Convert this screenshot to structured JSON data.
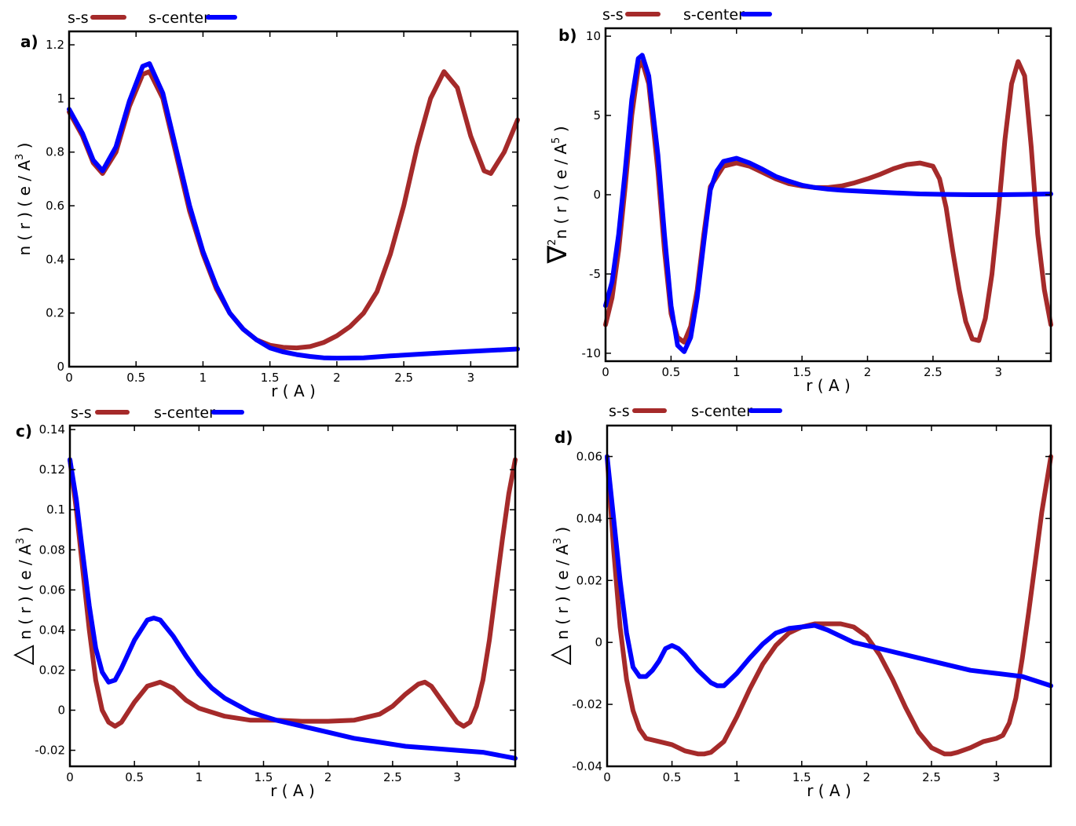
{
  "chart_data": [
    {
      "id": "a",
      "type": "line",
      "panel_label": "a)",
      "xlabel": "r ( A )",
      "ylabel_main": "n ( r ) ( e / A",
      "ylabel_sup": "3",
      "ylabel_tail": " )",
      "ylabel_prefix": "",
      "xlim": [
        0,
        3.35
      ],
      "ylim": [
        0,
        1.25
      ],
      "xticks": [
        0,
        0.5,
        1,
        1.5,
        2,
        2.5,
        3
      ],
      "xtick_labels": [
        "0",
        "0.5",
        "1",
        "1.5",
        "2",
        "2.5",
        "3"
      ],
      "yticks": [
        0,
        0.2,
        0.4,
        0.6,
        0.8,
        1,
        1.2
      ],
      "ytick_labels": [
        "0",
        "0.2",
        "0.4",
        "0.6",
        "0.8",
        "1",
        "1.2"
      ],
      "series": [
        {
          "name": "s-s",
          "color": "#a52a2a",
          "x": [
            0,
            0.1,
            0.18,
            0.25,
            0.35,
            0.45,
            0.55,
            0.6,
            0.7,
            0.8,
            0.9,
            1.0,
            1.1,
            1.2,
            1.3,
            1.4,
            1.5,
            1.6,
            1.7,
            1.8,
            1.9,
            2.0,
            2.1,
            2.2,
            2.3,
            2.4,
            2.5,
            2.6,
            2.7,
            2.8,
            2.9,
            3.0,
            3.1,
            3.15,
            3.25,
            3.35
          ],
          "y": [
            0.95,
            0.86,
            0.76,
            0.72,
            0.8,
            0.97,
            1.09,
            1.1,
            1.0,
            0.79,
            0.58,
            0.42,
            0.29,
            0.2,
            0.14,
            0.1,
            0.08,
            0.072,
            0.07,
            0.075,
            0.09,
            0.115,
            0.15,
            0.2,
            0.28,
            0.42,
            0.6,
            0.82,
            1.0,
            1.1,
            1.04,
            0.86,
            0.73,
            0.72,
            0.8,
            0.92
          ]
        },
        {
          "name": "s-center",
          "color": "#0000ff",
          "x": [
            0,
            0.1,
            0.18,
            0.25,
            0.35,
            0.45,
            0.55,
            0.6,
            0.7,
            0.8,
            0.9,
            1.0,
            1.1,
            1.2,
            1.3,
            1.4,
            1.5,
            1.6,
            1.7,
            1.8,
            1.9,
            2.0,
            2.2,
            2.4,
            2.6,
            2.8,
            3.0,
            3.2,
            3.35
          ],
          "y": [
            0.96,
            0.87,
            0.77,
            0.73,
            0.82,
            0.99,
            1.12,
            1.13,
            1.02,
            0.81,
            0.6,
            0.43,
            0.3,
            0.2,
            0.14,
            0.1,
            0.07,
            0.055,
            0.045,
            0.038,
            0.033,
            0.032,
            0.033,
            0.04,
            0.046,
            0.052,
            0.057,
            0.062,
            0.066
          ]
        }
      ]
    },
    {
      "id": "b",
      "type": "line",
      "panel_label": "b)",
      "xlabel": "r ( A )",
      "ylabel_prefix": "∇",
      "ylabel_sup_prefix": "2",
      "ylabel_main": "n ( r ) ( e / A",
      "ylabel_sup": "5",
      "ylabel_tail": " )",
      "xlim": [
        0,
        3.4
      ],
      "ylim": [
        -10.5,
        10.5
      ],
      "xticks": [
        0,
        0.5,
        1,
        1.5,
        2,
        2.5,
        3
      ],
      "xtick_labels": [
        "0",
        "0.5",
        "1",
        "1.5",
        "2",
        "2.5",
        "3"
      ],
      "yticks": [
        -10,
        -5,
        0,
        5,
        10
      ],
      "ytick_labels": [
        "-10",
        "-5",
        "0",
        "5",
        "10"
      ],
      "series": [
        {
          "name": "s-s",
          "color": "#a52a2a",
          "x": [
            0,
            0.05,
            0.1,
            0.15,
            0.2,
            0.25,
            0.28,
            0.33,
            0.4,
            0.45,
            0.5,
            0.55,
            0.6,
            0.65,
            0.7,
            0.75,
            0.8,
            0.9,
            1.0,
            1.1,
            1.2,
            1.3,
            1.4,
            1.5,
            1.6,
            1.7,
            1.8,
            1.9,
            2.0,
            2.1,
            2.2,
            2.3,
            2.4,
            2.5,
            2.55,
            2.6,
            2.65,
            2.7,
            2.75,
            2.8,
            2.85,
            2.9,
            2.95,
            3.0,
            3.05,
            3.1,
            3.15,
            3.2,
            3.25,
            3.3,
            3.35,
            3.4
          ],
          "y": [
            -8.2,
            -6.5,
            -3.5,
            0.5,
            5.0,
            8.0,
            8.4,
            7.0,
            1.5,
            -3.5,
            -7.5,
            -9.0,
            -9.3,
            -8.3,
            -6.0,
            -2.5,
            0.5,
            1.8,
            2.0,
            1.8,
            1.4,
            1.0,
            0.7,
            0.55,
            0.45,
            0.45,
            0.55,
            0.75,
            1.0,
            1.3,
            1.65,
            1.9,
            2.0,
            1.8,
            1.0,
            -0.8,
            -3.5,
            -6.0,
            -8.0,
            -9.1,
            -9.2,
            -7.8,
            -5.0,
            -1.0,
            3.5,
            7.0,
            8.4,
            7.5,
            3.0,
            -2.5,
            -6.0,
            -8.2
          ]
        },
        {
          "name": "s-center",
          "color": "#0000ff",
          "x": [
            0,
            0.05,
            0.1,
            0.15,
            0.2,
            0.25,
            0.28,
            0.33,
            0.4,
            0.45,
            0.5,
            0.55,
            0.6,
            0.65,
            0.7,
            0.75,
            0.8,
            0.85,
            0.9,
            1.0,
            1.1,
            1.2,
            1.3,
            1.4,
            1.5,
            1.6,
            1.7,
            1.8,
            2.0,
            2.2,
            2.4,
            2.6,
            2.8,
            3.0,
            3.2,
            3.4
          ],
          "y": [
            -7.0,
            -5.5,
            -2.5,
            1.5,
            6.0,
            8.6,
            8.8,
            7.5,
            2.5,
            -2.5,
            -7.0,
            -9.5,
            -9.9,
            -9.0,
            -6.5,
            -3.0,
            0.3,
            1.5,
            2.1,
            2.3,
            2.0,
            1.6,
            1.15,
            0.85,
            0.6,
            0.45,
            0.35,
            0.28,
            0.2,
            0.12,
            0.05,
            0.02,
            0.0,
            0.0,
            0.02,
            0.05
          ]
        }
      ]
    },
    {
      "id": "c",
      "type": "line",
      "panel_label": "c)",
      "xlabel": "r ( A )",
      "ylabel_prefix": "△",
      "ylabel_main": "n ( r )  ( e / A",
      "ylabel_sup": "3",
      "ylabel_tail": " )",
      "xlim": [
        0,
        3.45
      ],
      "ylim": [
        -0.028,
        0.142
      ],
      "xticks": [
        0,
        0.5,
        1,
        1.5,
        2,
        2.5,
        3
      ],
      "xtick_labels": [
        "0",
        "0.5",
        "1",
        "1.5",
        "2",
        "2.5",
        "3"
      ],
      "yticks": [
        -0.02,
        0,
        0.02,
        0.04,
        0.06,
        0.08,
        0.1,
        0.12,
        0.14
      ],
      "ytick_labels": [
        "-0.02",
        "0",
        "0.02",
        "0.04",
        "0.06",
        "0.08",
        "0.1",
        "0.12",
        "0.14"
      ],
      "series": [
        {
          "name": "s-s",
          "color": "#a52a2a",
          "x": [
            0,
            0.05,
            0.1,
            0.15,
            0.2,
            0.25,
            0.3,
            0.35,
            0.4,
            0.5,
            0.6,
            0.7,
            0.8,
            0.9,
            1.0,
            1.2,
            1.4,
            1.6,
            1.8,
            2.0,
            2.2,
            2.4,
            2.5,
            2.6,
            2.7,
            2.75,
            2.8,
            2.9,
            3.0,
            3.05,
            3.1,
            3.15,
            3.2,
            3.25,
            3.3,
            3.35,
            3.4,
            3.45
          ],
          "y": [
            0.125,
            0.1,
            0.07,
            0.04,
            0.015,
            0.0,
            -0.006,
            -0.008,
            -0.006,
            0.004,
            0.012,
            0.014,
            0.011,
            0.005,
            0.001,
            -0.003,
            -0.005,
            -0.005,
            -0.0055,
            -0.0055,
            -0.005,
            -0.002,
            0.002,
            0.008,
            0.013,
            0.014,
            0.012,
            0.003,
            -0.006,
            -0.008,
            -0.006,
            0.002,
            0.015,
            0.035,
            0.06,
            0.085,
            0.108,
            0.125
          ]
        },
        {
          "name": "s-center",
          "color": "#0000ff",
          "x": [
            0,
            0.05,
            0.1,
            0.15,
            0.2,
            0.25,
            0.3,
            0.35,
            0.4,
            0.5,
            0.6,
            0.65,
            0.7,
            0.8,
            0.9,
            1.0,
            1.1,
            1.2,
            1.4,
            1.6,
            1.8,
            2.0,
            2.2,
            2.4,
            2.6,
            2.8,
            3.0,
            3.2,
            3.45
          ],
          "y": [
            0.125,
            0.105,
            0.078,
            0.052,
            0.031,
            0.019,
            0.014,
            0.015,
            0.021,
            0.035,
            0.045,
            0.046,
            0.045,
            0.037,
            0.027,
            0.018,
            0.011,
            0.006,
            -0.001,
            -0.005,
            -0.008,
            -0.011,
            -0.014,
            -0.016,
            -0.018,
            -0.019,
            -0.02,
            -0.021,
            -0.024
          ]
        }
      ]
    },
    {
      "id": "d",
      "type": "line",
      "panel_label": "d)",
      "xlabel": "r ( A )",
      "ylabel_prefix": "△",
      "ylabel_main": "n ( r )  ( e / A",
      "ylabel_sup": "3",
      "ylabel_tail": " )",
      "xlim": [
        0,
        3.42
      ],
      "ylim": [
        -0.04,
        0.07
      ],
      "xticks": [
        0,
        0.5,
        1,
        1.5,
        2,
        2.5,
        3
      ],
      "xtick_labels": [
        "0",
        "0.5",
        "1",
        "1.5",
        "2",
        "2.5",
        "3"
      ],
      "yticks": [
        -0.04,
        -0.02,
        0,
        0.02,
        0.04,
        0.06
      ],
      "ytick_labels": [
        "-0.04",
        "-0.02",
        "0",
        "0.02",
        "0.04",
        "0.06"
      ],
      "series": [
        {
          "name": "s-s",
          "color": "#a52a2a",
          "x": [
            0,
            0.05,
            0.1,
            0.15,
            0.2,
            0.25,
            0.3,
            0.4,
            0.5,
            0.6,
            0.7,
            0.75,
            0.8,
            0.9,
            1.0,
            1.1,
            1.2,
            1.3,
            1.4,
            1.5,
            1.6,
            1.7,
            1.8,
            1.9,
            2.0,
            2.1,
            2.2,
            2.3,
            2.4,
            2.5,
            2.6,
            2.65,
            2.7,
            2.8,
            2.9,
            3.0,
            3.05,
            3.1,
            3.15,
            3.2,
            3.25,
            3.3,
            3.35,
            3.42
          ],
          "y": [
            0.06,
            0.03,
            0.005,
            -0.012,
            -0.022,
            -0.028,
            -0.031,
            -0.032,
            -0.033,
            -0.035,
            -0.036,
            -0.036,
            -0.0355,
            -0.032,
            -0.024,
            -0.015,
            -0.007,
            -0.001,
            0.003,
            0.005,
            0.006,
            0.006,
            0.006,
            0.005,
            0.002,
            -0.004,
            -0.012,
            -0.021,
            -0.029,
            -0.034,
            -0.036,
            -0.036,
            -0.0355,
            -0.034,
            -0.032,
            -0.031,
            -0.03,
            -0.026,
            -0.018,
            -0.005,
            0.01,
            0.026,
            0.042,
            0.06
          ]
        },
        {
          "name": "s-center",
          "color": "#0000ff",
          "x": [
            0,
            0.05,
            0.1,
            0.15,
            0.2,
            0.25,
            0.3,
            0.35,
            0.4,
            0.45,
            0.5,
            0.55,
            0.6,
            0.7,
            0.8,
            0.85,
            0.9,
            1.0,
            1.1,
            1.2,
            1.3,
            1.4,
            1.5,
            1.6,
            1.7,
            1.8,
            1.9,
            2.0,
            2.2,
            2.4,
            2.6,
            2.8,
            3.0,
            3.2,
            3.42
          ],
          "y": [
            0.06,
            0.04,
            0.02,
            0.003,
            -0.008,
            -0.011,
            -0.011,
            -0.009,
            -0.006,
            -0.002,
            -0.001,
            -0.002,
            -0.004,
            -0.009,
            -0.013,
            -0.014,
            -0.014,
            -0.01,
            -0.005,
            -0.0005,
            0.003,
            0.0045,
            0.005,
            0.0055,
            0.004,
            0.002,
            0.0,
            -0.001,
            -0.003,
            -0.005,
            -0.007,
            -0.009,
            -0.01,
            -0.011,
            -0.014
          ]
        }
      ]
    }
  ],
  "legend": {
    "ss": "s-s",
    "center": "s-center"
  }
}
